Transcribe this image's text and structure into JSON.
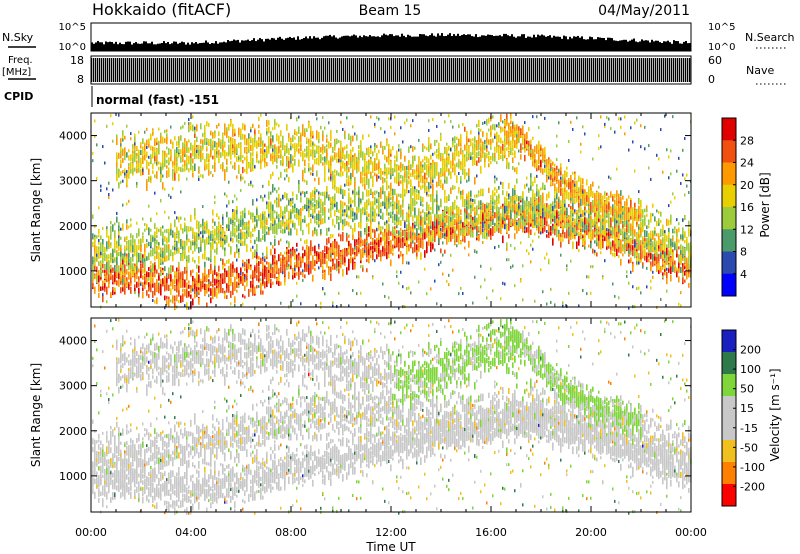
{
  "header": {
    "station": "Hokkaido (fitACF)",
    "beam": "Beam 15",
    "date": "04/May/2011"
  },
  "noise_panel": {
    "left_label": "N.Sky",
    "right_label": "N.Search",
    "left_ticks": [
      "10^5",
      "10^0"
    ],
    "right_ticks": [
      "10^5",
      "10^0"
    ]
  },
  "freq_panel": {
    "label_top": "Freq.",
    "label_unit": "[MHz]",
    "left_ticks": [
      "18",
      "8"
    ],
    "right_label": "Nave",
    "right_ticks": [
      "60",
      "0"
    ]
  },
  "cpid": {
    "label": "CPID",
    "text": "normal (fast) -151"
  },
  "chart_data": [
    {
      "type": "scatter",
      "name": "power",
      "ylabel": "Slant Range [km]",
      "xlabel": "Time UT",
      "xlim_hours": [
        0,
        24
      ],
      "ylim_km": [
        200,
        4500
      ],
      "y_ticks": [
        "1000",
        "2000",
        "3000",
        "4000"
      ],
      "x_ticks": [
        "00:00",
        "04:00",
        "08:00",
        "12:00",
        "16:00",
        "20:00",
        "00:00"
      ],
      "colorbar": {
        "label": "Power [dB]",
        "ticks": [
          "28",
          "24",
          "20",
          "16",
          "12",
          "8",
          "4"
        ],
        "range": [
          0,
          30
        ],
        "colors": [
          "#e00000",
          "#f05010",
          "#ff9900",
          "#e8d000",
          "#9ccc3c",
          "#4a9a6a",
          "#2a4ab0",
          "#0000ff"
        ]
      },
      "bands": [
        {
          "points": [
            [
              0.0,
              1000
            ],
            [
              2.0,
              900
            ],
            [
              4.0,
              750
            ],
            [
              6.0,
              900
            ],
            [
              8.0,
              1250
            ],
            [
              10.0,
              1500
            ],
            [
              12.0,
              1700
            ],
            [
              14.0,
              2000
            ],
            [
              16.0,
              2200
            ],
            [
              18.0,
              2300
            ],
            [
              20.0,
              2000
            ],
            [
              22.0,
              1500
            ],
            [
              24.0,
              1100
            ]
          ],
          "thickness_km": 500,
          "base_db": 24
        },
        {
          "points": [
            [
              0.0,
              1500
            ],
            [
              2.0,
              1500
            ],
            [
              4.0,
              1700
            ],
            [
              6.0,
              2000
            ],
            [
              8.0,
              2300
            ],
            [
              10.0,
              2500
            ],
            [
              12.0,
              2400
            ],
            [
              14.0,
              2300
            ],
            [
              16.0,
              2400
            ],
            [
              18.0,
              2500
            ],
            [
              20.0,
              2200
            ],
            [
              22.0,
              1900
            ],
            [
              24.0,
              1600
            ]
          ],
          "thickness_km": 700,
          "base_db": 14
        },
        {
          "points": [
            [
              1.0,
              3400
            ],
            [
              4.0,
              3700
            ],
            [
              7.0,
              3800
            ],
            [
              9.0,
              3700
            ],
            [
              11.0,
              3400
            ],
            [
              13.0,
              3200
            ],
            [
              15.0,
              3600
            ],
            [
              16.0,
              3900
            ],
            [
              17.0,
              3900
            ]
          ],
          "thickness_km": 700,
          "base_db": 17
        },
        {
          "points": [
            [
              16.5,
              4300
            ],
            [
              17.5,
              3800
            ],
            [
              18.5,
              3200
            ],
            [
              19.5,
              2800
            ],
            [
              20.5,
              2500
            ],
            [
              22.0,
              2300
            ]
          ],
          "thickness_km": 400,
          "base_db": 20
        }
      ]
    },
    {
      "type": "scatter",
      "name": "velocity",
      "ylabel": "Slant Range [km]",
      "xlabel": "Time UT",
      "xlim_hours": [
        0,
        24
      ],
      "ylim_km": [
        200,
        4500
      ],
      "y_ticks": [
        "1000",
        "2000",
        "3000",
        "4000"
      ],
      "x_ticks": [
        "00:00",
        "04:00",
        "08:00",
        "12:00",
        "16:00",
        "20:00",
        "00:00"
      ],
      "colorbar": {
        "label": "Velocity [m s⁻¹]",
        "ticks": [
          "200",
          "100",
          "50",
          "15",
          "-15",
          "-50",
          "-100",
          "-200"
        ],
        "range": [
          -250,
          250
        ],
        "colors": [
          "#1a20c0",
          "#2e7a4a",
          "#7ed63a",
          "#c8c8c8",
          "#c8c8c8",
          "#f0c020",
          "#ff8000",
          "#ff0000"
        ]
      }
    }
  ]
}
